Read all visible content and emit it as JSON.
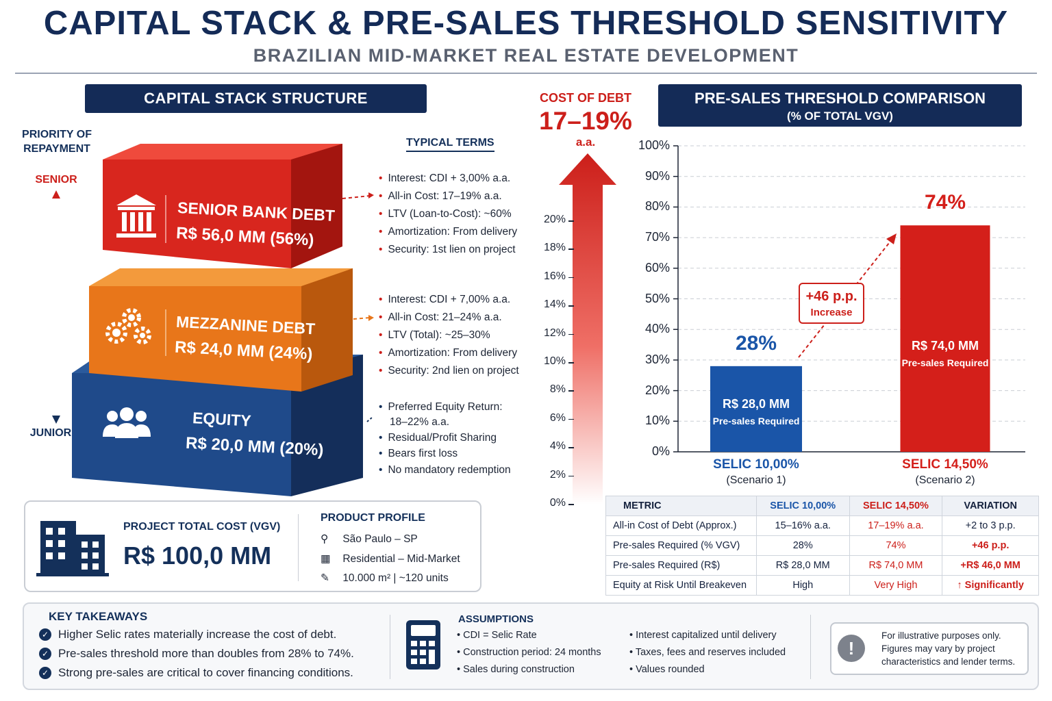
{
  "header": {
    "title": "CAPITAL STACK & PRE-SALES THRESHOLD SENSITIVITY",
    "subtitle": "BRAZILIAN MID-MARKET REAL ESTATE DEVELOPMENT"
  },
  "capital_stack": {
    "panel_title": "CAPITAL STACK STRUCTURE",
    "priority_label": "PRIORITY OF REPAYMENT",
    "senior_label": "SENIOR",
    "junior_label": "JUNIOR",
    "terms_title": "TYPICAL TERMS",
    "blocks": [
      {
        "name": "SENIOR BANK DEBT",
        "amount": "R$ 56,0 MM (56%)",
        "icon": "bank-icon",
        "color": "#d8261e",
        "terms": [
          "Interest: CDI + 3,00% a.a.",
          "All-in Cost: 17–19% a.a.",
          "LTV (Loan-to-Cost): ~60%",
          "Amortization: From delivery",
          "Security: 1st lien on project"
        ]
      },
      {
        "name": "MEZZANINE DEBT",
        "amount": "R$ 24,0 MM (24%)",
        "icon": "gears-icon",
        "color": "#e8761a",
        "terms": [
          "Interest: CDI + 7,00% a.a.",
          "All-in Cost: 21–24% a.a.",
          "LTV (Total): ~25–30%",
          "Amortization: From delivery",
          "Security: 2nd lien on project"
        ]
      },
      {
        "name": "EQUITY",
        "amount": "R$ 20,0 MM (20%)",
        "icon": "people-icon",
        "color": "#1f4a8a",
        "terms": [
          "Preferred Equity Return:",
          "18–22% a.a.",
          "Residual/Profit Sharing",
          "Bears first loss",
          "No mandatory redemption"
        ]
      }
    ]
  },
  "cost_of_debt": {
    "label": "COST OF DEBT",
    "value": "17–19%",
    "unit": "a.a.",
    "ticks": [
      "20%",
      "18%",
      "16%",
      "14%",
      "12%",
      "10%",
      "8%",
      "6%",
      "4%",
      "2%",
      "0%"
    ]
  },
  "presales": {
    "panel_title": "PRE-SALES THRESHOLD COMPARISON",
    "panel_subtitle": "(% OF TOTAL VGV)",
    "increase_value": "+46 p.p.",
    "increase_label": "Increase"
  },
  "chart_data": {
    "type": "bar",
    "title": "PRE-SALES THRESHOLD COMPARISON",
    "subtitle": "(% OF TOTAL VGV)",
    "categories": [
      "SELIC 10,00%",
      "SELIC 14,50%"
    ],
    "category_sublabels": [
      "(Scenario 1)",
      "(Scenario 2)"
    ],
    "values": [
      28,
      74
    ],
    "value_labels": [
      "28%",
      "74%"
    ],
    "bar_amounts": [
      "R$ 28,0 MM",
      "R$ 74,0 MM"
    ],
    "bar_notes": [
      "Pre-sales Required",
      "Pre-sales Required"
    ],
    "colors": [
      "#1a55a8",
      "#d41f1a"
    ],
    "ylim": [
      0,
      100
    ],
    "yticks": [
      "0%",
      "10%",
      "20%",
      "30%",
      "40%",
      "50%",
      "60%",
      "70%",
      "80%",
      "90%",
      "100%"
    ],
    "grid": true
  },
  "project": {
    "total_label": "PROJECT TOTAL COST (VGV)",
    "total_value": "R$ 100,0 MM",
    "profile_title": "PRODUCT PROFILE",
    "location": "São Paulo – SP",
    "segment": "Residential – Mid-Market",
    "size": "10.000 m² | ~120 units"
  },
  "table": {
    "headers": [
      "METRIC",
      "SELIC 10,00%",
      "SELIC 14,50%",
      "VARIATION"
    ],
    "rows": [
      [
        "All-in Cost of Debt (Approx.)",
        "15–16% a.a.",
        "17–19% a.a.",
        "+2 to 3 p.p."
      ],
      [
        "Pre-sales Required (% VGV)",
        "28%",
        "74%",
        "+46 p.p."
      ],
      [
        "Pre-sales Required (R$)",
        "R$ 28,0 MM",
        "R$ 74,0 MM",
        "+R$ 46,0 MM"
      ],
      [
        "Equity at Risk Until Breakeven",
        "High",
        "Very High",
        "↑ Significantly"
      ]
    ]
  },
  "takeaways": {
    "title": "KEY TAKEAWAYS",
    "items": [
      "Higher Selic rates materially increase the cost of debt.",
      "Pre-sales threshold more than doubles from 28% to 74%.",
      "Strong pre-sales are critical to cover financing conditions."
    ]
  },
  "assumptions": {
    "title": "ASSUMPTIONS",
    "col1": [
      "CDI = Selic Rate",
      "Construction period: 24 months",
      "Sales during construction"
    ],
    "col2": [
      "Interest capitalized until delivery",
      "Taxes, fees and reserves included",
      "Values rounded"
    ]
  },
  "disclaimer": {
    "line1": "For illustrative purposes only.",
    "line2": "Figures may vary by project",
    "line3": "characteristics and lender terms."
  }
}
